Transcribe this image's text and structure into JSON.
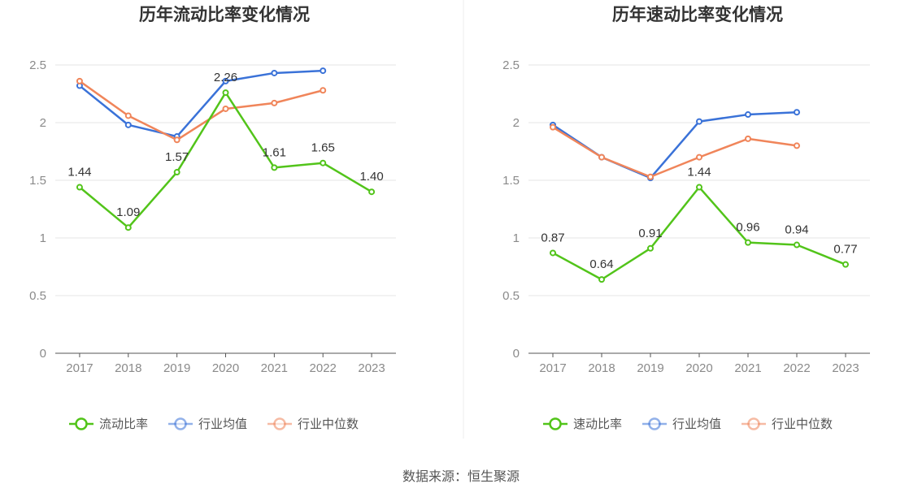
{
  "colors": {
    "green": "#52c41a",
    "blue": "#3a72d8",
    "orange": "#f0855a",
    "grid": "#e6e6e6",
    "axis": "#555555"
  },
  "footer": {
    "text": "数据来源：恒生聚源"
  },
  "chart_data": [
    {
      "type": "line",
      "title": "历年流动比率变化情况",
      "categories": [
        "2017",
        "2018",
        "2019",
        "2020",
        "2021",
        "2022",
        "2023"
      ],
      "ylim": [
        0,
        2.5
      ],
      "yticks": [
        "0",
        "0.5",
        "1",
        "1.5",
        "2",
        "2.5"
      ],
      "grid": true,
      "legend_position": "bottom",
      "series": [
        {
          "name": "流动比率",
          "color": "#52c41a",
          "values": [
            1.44,
            1.09,
            1.57,
            2.26,
            1.61,
            1.65,
            1.4
          ],
          "labels": [
            "1.44",
            "1.09",
            "1.57",
            "2.26",
            "1.61",
            "1.65",
            "1.40"
          ]
        },
        {
          "name": "行业均值",
          "color": "#3a72d8",
          "values": [
            2.32,
            1.98,
            1.88,
            2.36,
            2.43,
            2.45,
            null
          ]
        },
        {
          "name": "行业中位数",
          "color": "#f0855a",
          "values": [
            2.36,
            2.06,
            1.85,
            2.12,
            2.17,
            2.28,
            null
          ]
        }
      ]
    },
    {
      "type": "line",
      "title": "历年速动比率变化情况",
      "categories": [
        "2017",
        "2018",
        "2019",
        "2020",
        "2021",
        "2022",
        "2023"
      ],
      "ylim": [
        0,
        2.5
      ],
      "yticks": [
        "0",
        "0.5",
        "1",
        "1.5",
        "2",
        "2.5"
      ],
      "grid": true,
      "legend_position": "bottom",
      "series": [
        {
          "name": "速动比率",
          "color": "#52c41a",
          "values": [
            0.87,
            0.64,
            0.91,
            1.44,
            0.96,
            0.94,
            0.77
          ],
          "labels": [
            "0.87",
            "0.64",
            "0.91",
            "1.44",
            "0.96",
            "0.94",
            "0.77"
          ]
        },
        {
          "name": "行业均值",
          "color": "#3a72d8",
          "values": [
            1.98,
            1.7,
            1.52,
            2.01,
            2.07,
            2.09,
            null
          ]
        },
        {
          "name": "行业中位数",
          "color": "#f0855a",
          "values": [
            1.96,
            1.7,
            1.53,
            1.7,
            1.86,
            1.8,
            null
          ]
        }
      ]
    }
  ]
}
